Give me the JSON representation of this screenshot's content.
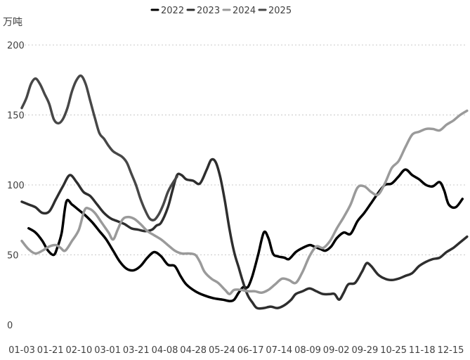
{
  "chart_data": {
    "type": "line",
    "ylabel": "万吨",
    "ylim": [
      0,
      200
    ],
    "yticks": [
      0,
      50,
      100,
      150,
      200
    ],
    "grid": true,
    "legend_position": "top-center",
    "x_tick_labels": [
      "01-03",
      "01-21",
      "02-10",
      "03-01",
      "03-21",
      "04-08",
      "04-28",
      "05-24",
      "06-17",
      "07-14",
      "08-09",
      "09-02",
      "09-29",
      "10-25",
      "11-18",
      "12-15"
    ],
    "series": [
      {
        "name": "2022",
        "color": "#000000",
        "points": [
          [
            0.3,
            69
          ],
          [
            0.6,
            66
          ],
          [
            0.9,
            60
          ],
          [
            1.15,
            53
          ],
          [
            1.4,
            50
          ],
          [
            1.55,
            55
          ],
          [
            1.75,
            66
          ],
          [
            1.95,
            88
          ],
          [
            2.2,
            86
          ],
          [
            2.5,
            82
          ],
          [
            2.8,
            78
          ],
          [
            3.1,
            73
          ],
          [
            3.4,
            67
          ],
          [
            3.7,
            61
          ],
          [
            4.0,
            53
          ],
          [
            4.3,
            45
          ],
          [
            4.6,
            40
          ],
          [
            4.9,
            39
          ],
          [
            5.2,
            42
          ],
          [
            5.5,
            48
          ],
          [
            5.8,
            52
          ],
          [
            6.1,
            49
          ],
          [
            6.4,
            43
          ],
          [
            6.7,
            42
          ],
          [
            6.95,
            35
          ],
          [
            7.2,
            29
          ],
          [
            7.6,
            24
          ],
          [
            8.0,
            21
          ],
          [
            8.4,
            19
          ],
          [
            8.8,
            18
          ],
          [
            9.1,
            17
          ],
          [
            9.3,
            18
          ],
          [
            9.5,
            23
          ],
          [
            9.7,
            27
          ],
          [
            9.9,
            27
          ],
          [
            10.1,
            35
          ],
          [
            10.35,
            50
          ],
          [
            10.6,
            66
          ],
          [
            10.8,
            62
          ],
          [
            11.0,
            51
          ],
          [
            11.2,
            49
          ],
          [
            11.5,
            48
          ],
          [
            11.7,
            47
          ],
          [
            12.0,
            52
          ],
          [
            12.3,
            55
          ],
          [
            12.6,
            57
          ],
          [
            12.8,
            56
          ],
          [
            13.1,
            54
          ],
          [
            13.3,
            53
          ],
          [
            13.55,
            56
          ],
          [
            13.8,
            62
          ],
          [
            14.1,
            66
          ],
          [
            14.4,
            65
          ],
          [
            14.7,
            74
          ],
          [
            15.0,
            80
          ],
          [
            15.3,
            87
          ],
          [
            15.6,
            94
          ],
          [
            15.9,
            100
          ],
          [
            16.2,
            101
          ],
          [
            16.5,
            106
          ],
          [
            16.8,
            111
          ],
          [
            17.1,
            107
          ],
          [
            17.4,
            104
          ],
          [
            17.7,
            100
          ],
          [
            18.0,
            99
          ],
          [
            18.3,
            102
          ],
          [
            18.5,
            96
          ],
          [
            18.7,
            86
          ],
          [
            19.0,
            84
          ],
          [
            19.3,
            90
          ]
        ]
      },
      {
        "name": "2023",
        "color": "#2e2e2e",
        "points": [
          [
            0,
            88
          ],
          [
            0.3,
            86
          ],
          [
            0.6,
            84
          ],
          [
            0.9,
            80
          ],
          [
            1.2,
            81
          ],
          [
            1.5,
            90
          ],
          [
            1.8,
            99
          ],
          [
            2.1,
            107
          ],
          [
            2.4,
            102
          ],
          [
            2.7,
            95
          ],
          [
            3.0,
            92
          ],
          [
            3.3,
            86
          ],
          [
            3.6,
            80
          ],
          [
            3.9,
            76
          ],
          [
            4.2,
            74
          ],
          [
            4.5,
            72
          ],
          [
            4.8,
            69
          ],
          [
            5.1,
            68
          ],
          [
            5.4,
            67
          ],
          [
            5.7,
            68
          ],
          [
            5.9,
            71
          ],
          [
            6.1,
            73
          ],
          [
            6.4,
            84
          ],
          [
            6.6,
            96
          ],
          [
            6.8,
            107
          ],
          [
            7.0,
            107
          ],
          [
            7.2,
            104
          ],
          [
            7.5,
            103
          ],
          [
            7.8,
            101
          ],
          [
            8.1,
            111
          ],
          [
            8.3,
            118
          ],
          [
            8.5,
            116
          ],
          [
            8.7,
            105
          ],
          [
            8.9,
            88
          ],
          [
            9.1,
            68
          ],
          [
            9.3,
            52
          ],
          [
            9.5,
            41
          ],
          [
            9.7,
            30
          ],
          [
            9.9,
            21
          ],
          [
            10.1,
            16
          ],
          [
            10.3,
            12
          ],
          [
            10.6,
            12
          ],
          [
            10.9,
            13
          ],
          [
            11.2,
            12
          ],
          [
            11.5,
            14
          ],
          [
            11.8,
            18
          ],
          [
            12.0,
            22
          ],
          [
            12.3,
            24
          ],
          [
            12.6,
            26
          ],
          [
            12.9,
            24
          ],
          [
            13.2,
            22
          ],
          [
            13.5,
            22
          ],
          [
            13.7,
            22
          ],
          [
            13.9,
            18
          ],
          [
            14.1,
            23
          ],
          [
            14.3,
            29
          ],
          [
            14.6,
            30
          ],
          [
            14.9,
            38
          ],
          [
            15.1,
            44
          ],
          [
            15.3,
            42
          ],
          [
            15.6,
            36
          ],
          [
            15.9,
            33
          ],
          [
            16.2,
            32
          ],
          [
            16.5,
            33
          ],
          [
            16.8,
            35
          ],
          [
            17.1,
            37
          ],
          [
            17.4,
            42
          ],
          [
            17.7,
            45
          ],
          [
            18.0,
            47
          ],
          [
            18.3,
            48
          ],
          [
            18.6,
            52
          ],
          [
            18.9,
            55
          ],
          [
            19.2,
            59
          ],
          [
            19.5,
            63
          ]
        ]
      },
      {
        "name": "2024",
        "color": "#9a9a9a",
        "points": [
          [
            0,
            60
          ],
          [
            0.3,
            54
          ],
          [
            0.6,
            51
          ],
          [
            0.9,
            53
          ],
          [
            1.2,
            56
          ],
          [
            1.5,
            57
          ],
          [
            1.7,
            55
          ],
          [
            1.9,
            53
          ],
          [
            2.2,
            60
          ],
          [
            2.5,
            68
          ],
          [
            2.75,
            82
          ],
          [
            2.95,
            83
          ],
          [
            3.2,
            80
          ],
          [
            3.5,
            73
          ],
          [
            3.8,
            66
          ],
          [
            4.0,
            61
          ],
          [
            4.2,
            68
          ],
          [
            4.4,
            75
          ],
          [
            4.6,
            77
          ],
          [
            4.9,
            76
          ],
          [
            5.2,
            72
          ],
          [
            5.5,
            67
          ],
          [
            5.8,
            64
          ],
          [
            6.1,
            61
          ],
          [
            6.4,
            57
          ],
          [
            6.7,
            53
          ],
          [
            7.0,
            51
          ],
          [
            7.3,
            51
          ],
          [
            7.6,
            50
          ],
          [
            7.8,
            45
          ],
          [
            8.0,
            38
          ],
          [
            8.3,
            33
          ],
          [
            8.6,
            30
          ],
          [
            8.9,
            25
          ],
          [
            9.1,
            22
          ],
          [
            9.3,
            25
          ],
          [
            9.6,
            25
          ],
          [
            9.9,
            24
          ],
          [
            10.2,
            24
          ],
          [
            10.5,
            23
          ],
          [
            10.8,
            25
          ],
          [
            11.1,
            29
          ],
          [
            11.4,
            33
          ],
          [
            11.7,
            32
          ],
          [
            12.0,
            30
          ],
          [
            12.3,
            38
          ],
          [
            12.6,
            49
          ],
          [
            12.9,
            56
          ],
          [
            13.2,
            55
          ],
          [
            13.5,
            60
          ],
          [
            13.8,
            69
          ],
          [
            14.1,
            77
          ],
          [
            14.4,
            86
          ],
          [
            14.7,
            98
          ],
          [
            15.0,
            99
          ],
          [
            15.3,
            95
          ],
          [
            15.6,
            93
          ],
          [
            15.9,
            101
          ],
          [
            16.2,
            112
          ],
          [
            16.5,
            117
          ],
          [
            16.8,
            127
          ],
          [
            17.1,
            136
          ],
          [
            17.4,
            138
          ],
          [
            17.7,
            140
          ],
          [
            18.0,
            140
          ],
          [
            18.3,
            139
          ],
          [
            18.6,
            143
          ],
          [
            18.9,
            146
          ],
          [
            19.2,
            150
          ],
          [
            19.5,
            153
          ]
        ]
      },
      {
        "name": "2025",
        "color": "#474747",
        "points": [
          [
            0,
            155
          ],
          [
            0.2,
            162
          ],
          [
            0.4,
            172
          ],
          [
            0.6,
            176
          ],
          [
            0.8,
            172
          ],
          [
            1.0,
            165
          ],
          [
            1.2,
            158
          ],
          [
            1.4,
            147
          ],
          [
            1.6,
            144
          ],
          [
            1.8,
            147
          ],
          [
            2.0,
            155
          ],
          [
            2.2,
            167
          ],
          [
            2.4,
            175
          ],
          [
            2.6,
            178
          ],
          [
            2.8,
            172
          ],
          [
            3.0,
            160
          ],
          [
            3.2,
            148
          ],
          [
            3.4,
            137
          ],
          [
            3.6,
            133
          ],
          [
            3.8,
            128
          ],
          [
            4.0,
            124
          ],
          [
            4.2,
            122
          ],
          [
            4.4,
            120
          ],
          [
            4.6,
            116
          ],
          [
            4.8,
            108
          ],
          [
            5.0,
            100
          ],
          [
            5.2,
            90
          ],
          [
            5.4,
            82
          ],
          [
            5.6,
            76
          ],
          [
            5.8,
            75
          ],
          [
            6.0,
            79
          ],
          [
            6.2,
            86
          ],
          [
            6.4,
            95
          ],
          [
            6.6,
            101
          ],
          [
            6.8,
            106
          ]
        ]
      }
    ]
  },
  "legend": [
    {
      "label": "2022",
      "color": "#000000"
    },
    {
      "label": "2023",
      "color": "#2e2e2e"
    },
    {
      "label": "2024",
      "color": "#9a9a9a"
    },
    {
      "label": "2025",
      "color": "#474747"
    }
  ]
}
